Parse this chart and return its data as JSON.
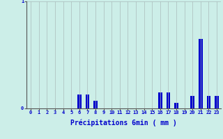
{
  "xlabel": "Précipitations 6min ( mm )",
  "categories": [
    0,
    1,
    2,
    3,
    4,
    5,
    6,
    7,
    8,
    9,
    10,
    11,
    12,
    13,
    14,
    15,
    16,
    17,
    18,
    19,
    20,
    21,
    22,
    23
  ],
  "values": [
    0,
    0,
    0,
    0,
    0,
    0,
    0.13,
    0.13,
    0.07,
    0,
    0,
    0,
    0,
    0,
    0,
    0,
    0.15,
    0.15,
    0.05,
    0,
    0.12,
    0.65,
    0.12,
    0.12
  ],
  "bar_color": "#0000cc",
  "background_color": "#cceee8",
  "grid_color": "#aabbbb",
  "axis_color": "#555555",
  "tick_color": "#0000cc",
  "label_color": "#0000cc",
  "ylim": [
    0,
    1.0
  ],
  "yticks": [
    0,
    1
  ],
  "xlim": [
    -0.5,
    23.5
  ],
  "bar_width": 0.5
}
